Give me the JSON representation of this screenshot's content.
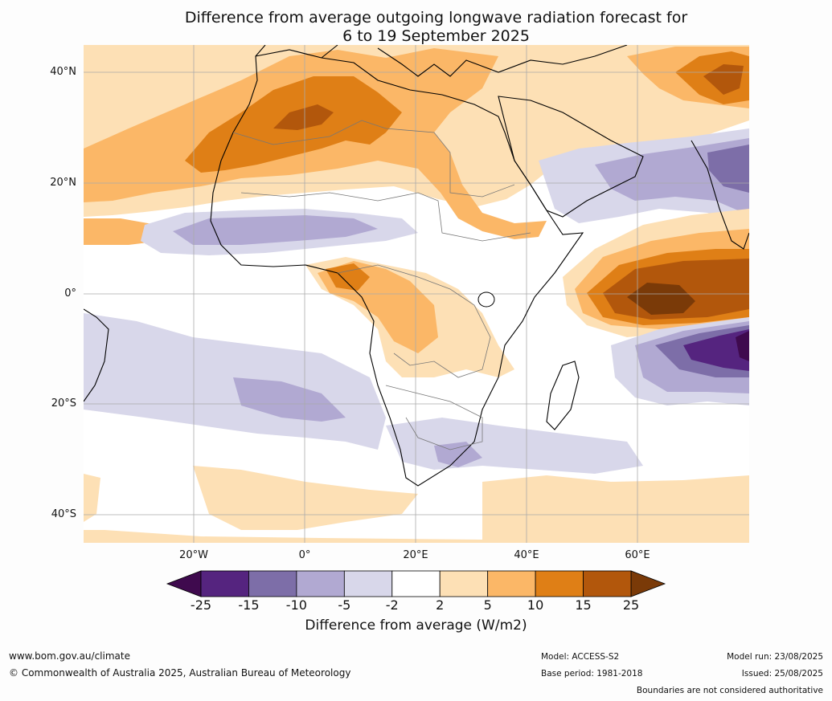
{
  "title_line1": "Difference from average outgoing longwave radiation forecast for",
  "title_line2": "6 to 19 September 2025",
  "lat_labels": [
    "40°N",
    "20°N",
    "0°",
    "20°S",
    "40°S"
  ],
  "lon_labels": [
    "20°W",
    "0°",
    "20°E",
    "40°E",
    "60°E"
  ],
  "colorbar": {
    "title": "Difference from average (W/m2)",
    "ticks": [
      "-25",
      "-15",
      "-10",
      "-5",
      "-2",
      "2",
      "5",
      "10",
      "15",
      "25"
    ],
    "colors": [
      "#3f0a4e",
      "#55247f",
      "#7d6ea8",
      "#b1a9d2",
      "#d8d7ea",
      "#ffffff",
      "#fde0b5",
      "#fbb767",
      "#df7f16",
      "#b2570c",
      "#7a3a08"
    ]
  },
  "footer": {
    "website": "www.bom.gov.au/climate",
    "copyright": "© Commonwealth of Australia 2025, Australian Bureau of Meteorology",
    "model": "Model: ACCESS-S2",
    "base_period": "Base period: 1981-2018",
    "model_run": "Model run: 23/08/2025",
    "issued": "Issued: 25/08/2025",
    "boundaries_note": "Boundaries are not considered authoritative"
  }
}
